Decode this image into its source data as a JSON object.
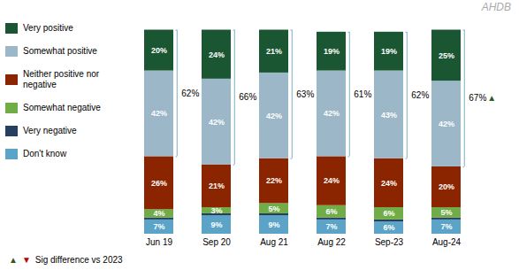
{
  "chart_data": {
    "type": "bar",
    "stacked": true,
    "categories": [
      "Jun 19",
      "Sep 20",
      "Aug 21",
      "Aug 22",
      "Sep-23",
      "Aug-24"
    ],
    "series": [
      {
        "name": "Don't know",
        "color": "#5BA4C8",
        "values": [
          7,
          9,
          9,
          7,
          6,
          7
        ],
        "value_labels": [
          "7%",
          "9%",
          "9%",
          "7%",
          "6%",
          "7%"
        ]
      },
      {
        "name": "Very negative",
        "color": "#243F60",
        "values": [
          1,
          1,
          1,
          1,
          1,
          1
        ],
        "value_labels": [
          null,
          null,
          null,
          null,
          null,
          null
        ]
      },
      {
        "name": "Somewhat negative",
        "color": "#70AD47",
        "values": [
          4,
          3,
          5,
          6,
          6,
          5
        ],
        "value_labels": [
          "4%",
          "3%",
          "5%",
          "6%",
          "6%",
          "5%"
        ]
      },
      {
        "name": "Neither positive nor negative",
        "color": "#8B2500",
        "values": [
          26,
          21,
          22,
          24,
          24,
          20
        ],
        "value_labels": [
          "26%",
          "21%",
          "22%",
          "24%",
          "24%",
          "20%"
        ]
      },
      {
        "name": "Somewhat positive",
        "color": "#9BB7C8",
        "values": [
          42,
          42,
          42,
          42,
          43,
          42
        ],
        "value_labels": [
          "42%",
          "42%",
          "42%",
          "42%",
          "43%",
          "42%"
        ]
      },
      {
        "name": "Very positive",
        "color": "#1A5632",
        "values": [
          20,
          24,
          21,
          19,
          19,
          25
        ],
        "value_labels": [
          "20%",
          "24%",
          "21%",
          "19%",
          "19%",
          "25%"
        ]
      }
    ],
    "ylim": [
      0,
      105
    ],
    "data_labels": true,
    "tick_labels": "x",
    "grid": false,
    "legend": "left",
    "annotations": [
      {
        "category": "Jun 19",
        "text": "62%",
        "spans": [
          "Somewhat positive",
          "Very positive"
        ],
        "color": "#7BAFC4"
      },
      {
        "category": "Sep 20",
        "text": "66%",
        "spans": [
          "Somewhat positive",
          "Very positive"
        ],
        "color": "#7BAFC4"
      },
      {
        "category": "Aug 21",
        "text": "63%",
        "spans": [
          "Somewhat positive",
          "Very positive"
        ],
        "color": "#7BAFC4"
      },
      {
        "category": "Aug 22",
        "text": "61%",
        "spans": [
          "Somewhat positive",
          "Very positive"
        ],
        "color": "#7BAFC4"
      },
      {
        "category": "Sep-23",
        "text": "62%",
        "spans": [
          "Somewhat positive",
          "Very positive"
        ],
        "color": "#7BAFC4"
      },
      {
        "category": "Aug-24",
        "text": "67%",
        "spans": [
          "Somewhat positive",
          "Very positive"
        ],
        "color": "#7BAFC4"
      },
      {
        "category": "Aug-24",
        "text": "▲",
        "color": "#375623"
      },
      {
        "text": "AHDB",
        "position": "top right",
        "color": "#AAAAAA"
      }
    ],
    "notes": [
      {
        "text": "▲",
        "color": "#375623"
      },
      {
        "text": "▼",
        "color": "#C00000"
      },
      {
        "text": "Sig difference vs 2023"
      }
    ]
  }
}
